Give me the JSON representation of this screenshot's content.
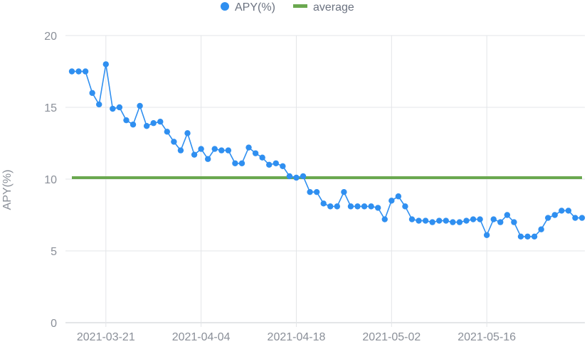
{
  "chart_data": {
    "type": "line",
    "title": "",
    "xlabel": "",
    "ylabel": "APY(%)",
    "ylim": [
      0,
      20
    ],
    "yticks": [
      "0",
      "5",
      "10",
      "15",
      "20"
    ],
    "xticks": [
      "2021-03-21",
      "2021-04-04",
      "2021-04-18",
      "2021-05-02",
      "2021-05-16"
    ],
    "x_range": [
      "2021-03-16",
      "2021-05-30"
    ],
    "grid": true,
    "legend": "top-center",
    "series": [
      {
        "name": "APY(%)",
        "kind": "line-with-markers",
        "color": "#2f8ff0",
        "x": [
          "2021-03-16",
          "2021-03-17",
          "2021-03-18",
          "2021-03-19",
          "2021-03-20",
          "2021-03-21",
          "2021-03-22",
          "2021-03-23",
          "2021-03-24",
          "2021-03-25",
          "2021-03-26",
          "2021-03-27",
          "2021-03-28",
          "2021-03-29",
          "2021-03-30",
          "2021-03-31",
          "2021-04-01",
          "2021-04-02",
          "2021-04-03",
          "2021-04-04",
          "2021-04-05",
          "2021-04-06",
          "2021-04-07",
          "2021-04-08",
          "2021-04-09",
          "2021-04-10",
          "2021-04-11",
          "2021-04-12",
          "2021-04-13",
          "2021-04-14",
          "2021-04-15",
          "2021-04-16",
          "2021-04-17",
          "2021-04-18",
          "2021-04-19",
          "2021-04-20",
          "2021-04-21",
          "2021-04-22",
          "2021-04-23",
          "2021-04-24",
          "2021-04-25",
          "2021-04-26",
          "2021-04-27",
          "2021-04-28",
          "2021-04-29",
          "2021-04-30",
          "2021-05-01",
          "2021-05-02",
          "2021-05-03",
          "2021-05-04",
          "2021-05-05",
          "2021-05-06",
          "2021-05-07",
          "2021-05-08",
          "2021-05-09",
          "2021-05-10",
          "2021-05-11",
          "2021-05-12",
          "2021-05-13",
          "2021-05-14",
          "2021-05-15",
          "2021-05-16",
          "2021-05-17",
          "2021-05-18",
          "2021-05-19",
          "2021-05-20",
          "2021-05-21",
          "2021-05-22",
          "2021-05-23",
          "2021-05-24",
          "2021-05-25",
          "2021-05-26",
          "2021-05-27",
          "2021-05-28",
          "2021-05-29",
          "2021-05-30"
        ],
        "values": [
          17.5,
          17.5,
          17.5,
          16.0,
          15.2,
          18.0,
          14.9,
          15.0,
          14.1,
          13.8,
          15.1,
          13.7,
          13.9,
          14.0,
          13.3,
          12.6,
          12.0,
          13.2,
          11.7,
          12.1,
          11.4,
          12.1,
          12.0,
          12.0,
          11.1,
          11.1,
          12.2,
          11.8,
          11.5,
          11.0,
          11.1,
          10.9,
          10.2,
          10.1,
          10.2,
          9.1,
          9.1,
          8.3,
          8.1,
          8.1,
          9.1,
          8.1,
          8.1,
          8.1,
          8.1,
          8.0,
          7.2,
          8.5,
          8.8,
          8.1,
          7.2,
          7.1,
          7.1,
          7.0,
          7.1,
          7.1,
          7.0,
          7.0,
          7.1,
          7.2,
          7.2,
          6.1,
          7.2,
          7.0,
          7.5,
          7.0,
          6.0,
          6.0,
          6.0,
          6.5,
          7.3,
          7.5,
          7.8,
          7.8,
          7.3,
          7.3
        ]
      },
      {
        "name": "average",
        "kind": "line",
        "color": "#6aa84f",
        "x": [
          "2021-03-16",
          "2021-05-30"
        ],
        "values": [
          10.1,
          10.1
        ]
      }
    ]
  }
}
